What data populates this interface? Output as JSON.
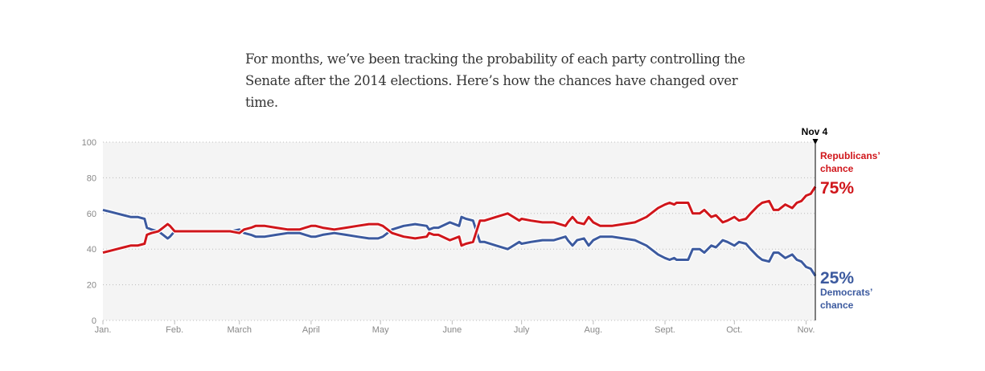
{
  "intro": {
    "line1": "For months, we’ve been tracking the probability of each party controlling the",
    "line2": "Senate after the 2014 elections. Here’s how the chances have changed over time."
  },
  "colors": {
    "republican": "#d0161b",
    "democrat": "#3c5a9f",
    "plot_bg": "#f4f4f4",
    "grid": "#bbbbbb",
    "tick_text": "#888888",
    "marker_line": "#000000"
  },
  "chart_data": {
    "type": "line",
    "title": "",
    "xlabel": "",
    "ylabel": "",
    "ylim": [
      0,
      100
    ],
    "yticks": [
      0,
      20,
      40,
      60,
      80,
      100
    ],
    "xlim_days": [
      0,
      308
    ],
    "x_unit": "day of 2014 (0 = Jan. 1)",
    "xticks": [
      {
        "label": "Jan.",
        "day": 0
      },
      {
        "label": "Feb.",
        "day": 31
      },
      {
        "label": "March",
        "day": 59
      },
      {
        "label": "April",
        "day": 90
      },
      {
        "label": "May",
        "day": 120
      },
      {
        "label": "June",
        "day": 151
      },
      {
        "label": "July",
        "day": 181
      },
      {
        "label": "Aug.",
        "day": 212
      },
      {
        "label": "Sept.",
        "day": 243
      },
      {
        "label": "Oct.",
        "day": 273
      },
      {
        "label": "Nov.",
        "day": 304
      }
    ],
    "grid": true,
    "marker": {
      "label": "Nov 4",
      "day": 308
    },
    "x": [
      0,
      3,
      6,
      9,
      12,
      15,
      18,
      19,
      21,
      24,
      26,
      28,
      29,
      31,
      35,
      40,
      45,
      50,
      55,
      59,
      61,
      64,
      66,
      70,
      75,
      80,
      85,
      90,
      92,
      95,
      100,
      105,
      110,
      115,
      119,
      121,
      125,
      130,
      135,
      140,
      141,
      143,
      145,
      150,
      154,
      155,
      157,
      160,
      163,
      165,
      170,
      175,
      180,
      181,
      185,
      190,
      195,
      200,
      201,
      203,
      205,
      208,
      210,
      212,
      215,
      220,
      225,
      230,
      235,
      238,
      240,
      243,
      245,
      247,
      248,
      250,
      253,
      255,
      258,
      260,
      263,
      265,
      268,
      270,
      273,
      275,
      278,
      280,
      283,
      285,
      288,
      290,
      292,
      295,
      298,
      300,
      302,
      304,
      306,
      308
    ],
    "series": [
      {
        "name": "Republicans’ chance",
        "final_label": "75%",
        "values": [
          38,
          39,
          40,
          41,
          42,
          42,
          43,
          48,
          49,
          50,
          52,
          54,
          53,
          50,
          50,
          50,
          50,
          50,
          50,
          49,
          51,
          52,
          53,
          53,
          52,
          51,
          51,
          53,
          53,
          52,
          51,
          52,
          53,
          54,
          54,
          53,
          49,
          47,
          46,
          47,
          49,
          48,
          48,
          45,
          47,
          42,
          43,
          44,
          56,
          56,
          58,
          60,
          56,
          57,
          56,
          55,
          55,
          53,
          55,
          58,
          55,
          54,
          58,
          55,
          53,
          53,
          54,
          55,
          58,
          61,
          63,
          65,
          66,
          65,
          66,
          66,
          66,
          60,
          60,
          62,
          58,
          59,
          55,
          56,
          58,
          56,
          57,
          60,
          64,
          66,
          67,
          62,
          62,
          65,
          63,
          66,
          67,
          70,
          71,
          75
        ]
      },
      {
        "name": "Democrats’ chance",
        "final_label": "25%",
        "values": [
          62,
          61,
          60,
          59,
          58,
          58,
          57,
          52,
          51,
          50,
          48,
          46,
          47,
          50,
          50,
          50,
          50,
          50,
          50,
          51,
          49,
          48,
          47,
          47,
          48,
          49,
          49,
          47,
          47,
          48,
          49,
          48,
          47,
          46,
          46,
          47,
          51,
          53,
          54,
          53,
          51,
          52,
          52,
          55,
          53,
          58,
          57,
          56,
          44,
          44,
          42,
          40,
          44,
          43,
          44,
          45,
          45,
          47,
          45,
          42,
          45,
          46,
          42,
          45,
          47,
          47,
          46,
          45,
          42,
          39,
          37,
          35,
          34,
          35,
          34,
          34,
          34,
          40,
          40,
          38,
          42,
          41,
          45,
          44,
          42,
          44,
          43,
          40,
          36,
          34,
          33,
          38,
          38,
          35,
          37,
          34,
          33,
          30,
          29,
          25
        ]
      }
    ],
    "annotations": [
      {
        "text": "Republicans’",
        "series": "Republicans’ chance"
      },
      {
        "text": "chance",
        "series": "Republicans’ chance"
      },
      {
        "text": "Democrats’",
        "series": "Democrats’ chance"
      },
      {
        "text": "chance",
        "series": "Democrats’ chance"
      }
    ]
  }
}
